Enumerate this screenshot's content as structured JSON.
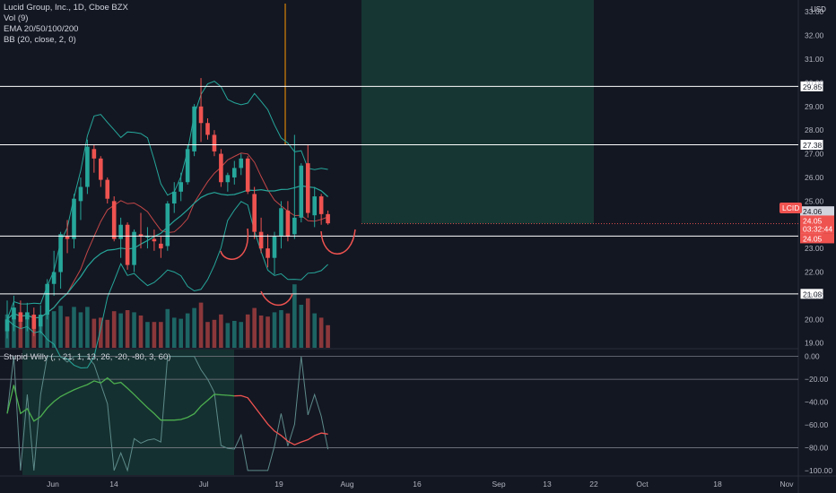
{
  "header": {
    "title": "Lucid Group, Inc., 1D, Cboe BZX",
    "vol": "Vol (9)",
    "ema": "EMA 20/50/100/200",
    "bb": "BB (20, close, 2, 0)",
    "osc": "Stupid Willy (, , 21, 1, 13, 26, -20, -80, 3, 60)"
  },
  "currency": "USD",
  "colors": {
    "background": "#131722",
    "up": "#26a69a",
    "down": "#ef5350",
    "line": "#ffffff",
    "zone": "#1b5e4a",
    "bb": "#26a69a",
    "ema_red": "#ef5350",
    "ema_orange": "#ff9800"
  },
  "price_badges": [
    {
      "value": "24.06",
      "bg": "#d1d4dc",
      "fg": "#131722"
    },
    {
      "value": "24.05",
      "bg": "#ef5350",
      "fg": "#ffffff"
    },
    {
      "value": "03:32:44",
      "bg": "#ef5350",
      "fg": "#ffffff"
    },
    {
      "value": "24.05",
      "bg": "#ef5350",
      "fg": "#ffffff"
    }
  ],
  "symbol_badge": "LCID",
  "chart_data": [
    {
      "type": "candlestick",
      "title": "Lucid Group, Inc., 1D, Cboe BZX",
      "y_ticks": [
        19.0,
        20.0,
        21.0,
        22.0,
        23.0,
        24.0,
        25.0,
        26.0,
        27.0,
        28.0,
        29.0,
        30.0,
        31.0,
        32.0,
        33.0
      ],
      "ylim": [
        18.8,
        33.5
      ],
      "x_tick_labels": [
        "Jun",
        "14",
        "Jul",
        "19",
        "Aug",
        "16",
        "Sep",
        "13",
        "22",
        "Oct",
        "18",
        "Nov"
      ],
      "horizontal_levels": [
        29.85,
        27.38,
        23.52,
        21.08
      ],
      "candles": [
        {
          "o": 19.5,
          "h": 20.8,
          "l": 19.2,
          "c": 20.0
        },
        {
          "o": 20.0,
          "h": 21.0,
          "l": 19.5,
          "c": 20.5
        },
        {
          "o": 20.3,
          "h": 20.8,
          "l": 19.6,
          "c": 19.9
        },
        {
          "o": 20.0,
          "h": 20.7,
          "l": 19.5,
          "c": 20.3
        },
        {
          "o": 20.2,
          "h": 20.5,
          "l": 19.3,
          "c": 19.6
        },
        {
          "o": 19.7,
          "h": 20.6,
          "l": 19.4,
          "c": 20.2
        },
        {
          "o": 20.2,
          "h": 21.7,
          "l": 20.0,
          "c": 21.5
        },
        {
          "o": 21.5,
          "h": 22.9,
          "l": 21.0,
          "c": 22.0
        },
        {
          "o": 22.0,
          "h": 23.7,
          "l": 21.3,
          "c": 23.6
        },
        {
          "o": 23.5,
          "h": 24.2,
          "l": 22.8,
          "c": 23.4
        },
        {
          "o": 23.4,
          "h": 25.3,
          "l": 23.0,
          "c": 25.1
        },
        {
          "o": 25.0,
          "h": 26.0,
          "l": 24.2,
          "c": 25.6
        },
        {
          "o": 25.6,
          "h": 27.6,
          "l": 25.3,
          "c": 27.3
        },
        {
          "o": 27.2,
          "h": 27.4,
          "l": 26.2,
          "c": 26.8
        },
        {
          "o": 26.8,
          "h": 26.9,
          "l": 25.6,
          "c": 25.9
        },
        {
          "o": 25.9,
          "h": 26.0,
          "l": 24.9,
          "c": 25.1
        },
        {
          "o": 25.0,
          "h": 25.2,
          "l": 23.3,
          "c": 23.4
        },
        {
          "o": 23.4,
          "h": 24.3,
          "l": 22.6,
          "c": 24.0
        },
        {
          "o": 24.0,
          "h": 24.1,
          "l": 22.1,
          "c": 22.3
        },
        {
          "o": 22.3,
          "h": 23.8,
          "l": 22.0,
          "c": 23.7
        },
        {
          "o": 23.6,
          "h": 24.5,
          "l": 23.0,
          "c": 23.5
        },
        {
          "o": 23.5,
          "h": 23.9,
          "l": 23.0,
          "c": 23.5
        },
        {
          "o": 23.4,
          "h": 23.8,
          "l": 22.9,
          "c": 23.3
        },
        {
          "o": 23.2,
          "h": 23.5,
          "l": 22.6,
          "c": 23.0
        },
        {
          "o": 23.1,
          "h": 25.0,
          "l": 22.9,
          "c": 24.9
        },
        {
          "o": 24.9,
          "h": 25.8,
          "l": 24.5,
          "c": 25.4
        },
        {
          "o": 25.4,
          "h": 26.2,
          "l": 25.0,
          "c": 25.8
        },
        {
          "o": 25.8,
          "h": 27.4,
          "l": 25.7,
          "c": 27.2
        },
        {
          "o": 27.1,
          "h": 29.1,
          "l": 26.9,
          "c": 29.0
        },
        {
          "o": 29.0,
          "h": 30.2,
          "l": 27.5,
          "c": 28.3
        },
        {
          "o": 28.3,
          "h": 28.5,
          "l": 27.6,
          "c": 27.8
        },
        {
          "o": 27.8,
          "h": 28.0,
          "l": 26.9,
          "c": 27.1
        },
        {
          "o": 27.0,
          "h": 27.2,
          "l": 25.6,
          "c": 25.8
        },
        {
          "o": 25.8,
          "h": 26.2,
          "l": 25.4,
          "c": 26.1
        },
        {
          "o": 26.0,
          "h": 26.7,
          "l": 25.7,
          "c": 26.4
        },
        {
          "o": 26.4,
          "h": 27.0,
          "l": 26.1,
          "c": 26.8
        },
        {
          "o": 26.8,
          "h": 26.9,
          "l": 25.3,
          "c": 25.4
        },
        {
          "o": 25.3,
          "h": 25.6,
          "l": 23.4,
          "c": 23.7
        },
        {
          "o": 23.7,
          "h": 24.3,
          "l": 22.8,
          "c": 23.0
        },
        {
          "o": 23.0,
          "h": 23.6,
          "l": 22.2,
          "c": 22.6
        },
        {
          "o": 22.6,
          "h": 23.7,
          "l": 21.9,
          "c": 23.5
        },
        {
          "o": 23.5,
          "h": 25.0,
          "l": 23.0,
          "c": 24.7
        },
        {
          "o": 24.6,
          "h": 25.0,
          "l": 23.3,
          "c": 23.5
        },
        {
          "o": 23.6,
          "h": 27.8,
          "l": 23.4,
          "c": 24.3
        },
        {
          "o": 24.3,
          "h": 26.6,
          "l": 24.1,
          "c": 26.5
        },
        {
          "o": 26.6,
          "h": 27.4,
          "l": 24.3,
          "c": 24.5
        },
        {
          "o": 24.4,
          "h": 25.6,
          "l": 23.9,
          "c": 25.2
        },
        {
          "o": 25.2,
          "h": 25.3,
          "l": 24.0,
          "c": 24.45
        },
        {
          "o": 24.45,
          "h": 24.6,
          "l": 24.0,
          "c": 24.06
        }
      ]
    },
    {
      "type": "line",
      "title": "Stupid Willy (, , 21, 1, 13, 26, -20, -80, 3, 60)",
      "y_ticks": [
        0.0,
        -20.0,
        -40.0,
        -60.0,
        -80.0,
        -100.0
      ],
      "y_tick_labels": [
        "0.00",
        "−20.00",
        "−40.00",
        "−60.00",
        "−80.00",
        "−100.00"
      ],
      "ylim": [
        -104,
        6
      ],
      "levels": [
        -20,
        -80
      ]
    }
  ]
}
